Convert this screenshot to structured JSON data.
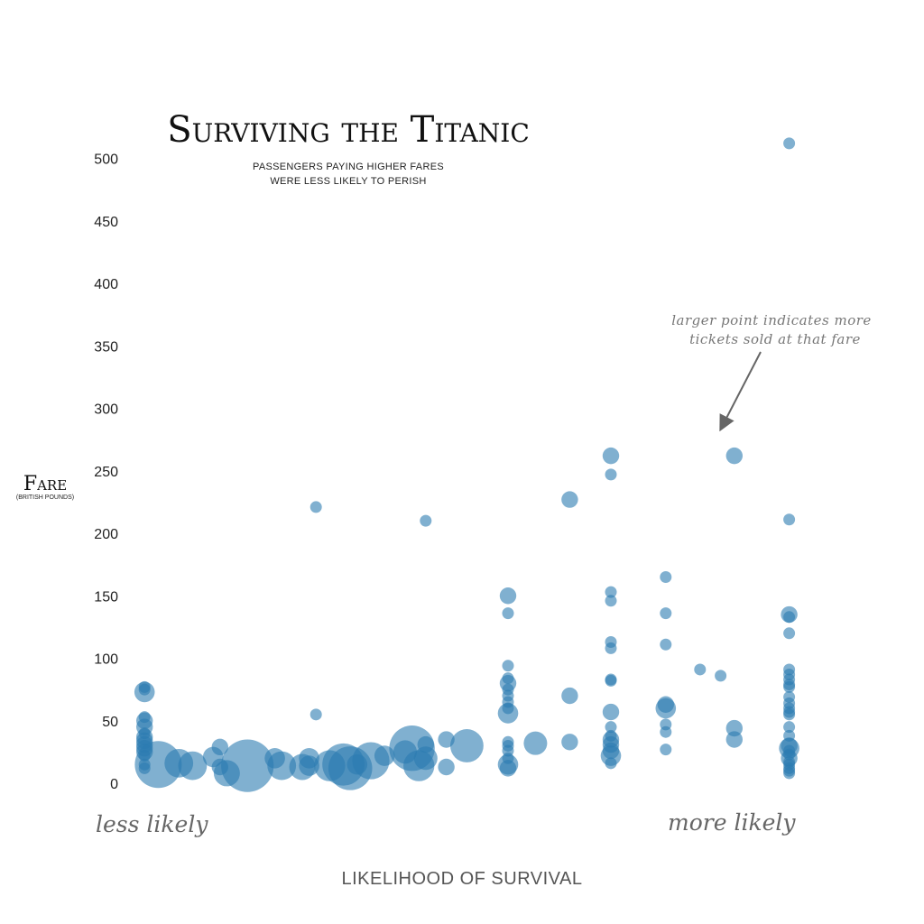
{
  "chart_data": {
    "type": "scatter",
    "title": "Surviving the Titanic",
    "subtitle_lines": [
      "PASSENGERS PAYING HIGHER FARES",
      "WERE LESS LIKELY TO PERISH"
    ],
    "ylabel": "Fare",
    "ylabel_sub": "(BRITISH POUNDS)",
    "xlabel": "LIKELIHOOD OF SURVIVAL",
    "x_low_label": "less likely",
    "x_high_label": "more likely",
    "annotation_lines": [
      "larger point indicates more",
      "tickets sold at that fare"
    ],
    "y_ticks": [
      0,
      50,
      100,
      150,
      200,
      250,
      300,
      350,
      400,
      450,
      500
    ],
    "y_range": [
      0,
      510
    ],
    "x_range": [
      0,
      1
    ],
    "grid": false,
    "legend": "none",
    "color": "#2b7bb0",
    "points": [
      {
        "x": 0.02,
        "y": 77,
        "size": 1
      },
      {
        "x": 0.02,
        "y": 75,
        "size": 1
      },
      {
        "x": 0.02,
        "y": 73,
        "size": 3
      },
      {
        "x": 0.02,
        "y": 53,
        "size": 1
      },
      {
        "x": 0.02,
        "y": 50,
        "size": 2
      },
      {
        "x": 0.02,
        "y": 45,
        "size": 2
      },
      {
        "x": 0.02,
        "y": 40,
        "size": 1
      },
      {
        "x": 0.02,
        "y": 37,
        "size": 2
      },
      {
        "x": 0.02,
        "y": 34,
        "size": 2
      },
      {
        "x": 0.02,
        "y": 31,
        "size": 2
      },
      {
        "x": 0.02,
        "y": 28,
        "size": 2
      },
      {
        "x": 0.02,
        "y": 25,
        "size": 2
      },
      {
        "x": 0.02,
        "y": 22,
        "size": 1
      },
      {
        "x": 0.02,
        "y": 15,
        "size": 1
      },
      {
        "x": 0.02,
        "y": 12,
        "size": 1
      },
      {
        "x": 0.04,
        "y": 15,
        "size": 16
      },
      {
        "x": 0.07,
        "y": 16,
        "size": 6
      },
      {
        "x": 0.09,
        "y": 14,
        "size": 6
      },
      {
        "x": 0.12,
        "y": 21,
        "size": 3
      },
      {
        "x": 0.13,
        "y": 29,
        "size": 2
      },
      {
        "x": 0.13,
        "y": 13,
        "size": 2
      },
      {
        "x": 0.14,
        "y": 8,
        "size": 5
      },
      {
        "x": 0.17,
        "y": 14,
        "size": 20
      },
      {
        "x": 0.21,
        "y": 20,
        "size": 3
      },
      {
        "x": 0.22,
        "y": 14,
        "size": 6
      },
      {
        "x": 0.25,
        "y": 13,
        "size": 5
      },
      {
        "x": 0.26,
        "y": 14,
        "size": 3
      },
      {
        "x": 0.26,
        "y": 20,
        "size": 3
      },
      {
        "x": 0.27,
        "y": 55,
        "size": 1
      },
      {
        "x": 0.27,
        "y": 221,
        "size": 1
      },
      {
        "x": 0.29,
        "y": 14,
        "size": 7
      },
      {
        "x": 0.31,
        "y": 15,
        "size": 13
      },
      {
        "x": 0.32,
        "y": 12,
        "size": 14
      },
      {
        "x": 0.33,
        "y": 15,
        "size": 3
      },
      {
        "x": 0.35,
        "y": 18,
        "size": 10
      },
      {
        "x": 0.37,
        "y": 22,
        "size": 3
      },
      {
        "x": 0.4,
        "y": 25,
        "size": 4
      },
      {
        "x": 0.41,
        "y": 28,
        "size": 15
      },
      {
        "x": 0.42,
        "y": 14,
        "size": 7
      },
      {
        "x": 0.43,
        "y": 20,
        "size": 4
      },
      {
        "x": 0.43,
        "y": 31,
        "size": 2
      },
      {
        "x": 0.43,
        "y": 210,
        "size": 1
      },
      {
        "x": 0.46,
        "y": 13,
        "size": 2
      },
      {
        "x": 0.46,
        "y": 35,
        "size": 2
      },
      {
        "x": 0.49,
        "y": 30,
        "size": 8
      },
      {
        "x": 0.55,
        "y": 150,
        "size": 2
      },
      {
        "x": 0.55,
        "y": 136,
        "size": 1
      },
      {
        "x": 0.55,
        "y": 94,
        "size": 1
      },
      {
        "x": 0.55,
        "y": 84,
        "size": 1
      },
      {
        "x": 0.55,
        "y": 80,
        "size": 2
      },
      {
        "x": 0.55,
        "y": 75,
        "size": 1
      },
      {
        "x": 0.55,
        "y": 70,
        "size": 1
      },
      {
        "x": 0.55,
        "y": 65,
        "size": 1
      },
      {
        "x": 0.55,
        "y": 60,
        "size": 1
      },
      {
        "x": 0.55,
        "y": 56,
        "size": 3
      },
      {
        "x": 0.55,
        "y": 33,
        "size": 1
      },
      {
        "x": 0.55,
        "y": 30,
        "size": 1
      },
      {
        "x": 0.55,
        "y": 26,
        "size": 1
      },
      {
        "x": 0.55,
        "y": 20,
        "size": 1
      },
      {
        "x": 0.55,
        "y": 15,
        "size": 3
      },
      {
        "x": 0.55,
        "y": 12,
        "size": 2
      },
      {
        "x": 0.59,
        "y": 32,
        "size": 4
      },
      {
        "x": 0.64,
        "y": 227,
        "size": 2
      },
      {
        "x": 0.64,
        "y": 70,
        "size": 2
      },
      {
        "x": 0.64,
        "y": 33,
        "size": 2
      },
      {
        "x": 0.7,
        "y": 262,
        "size": 2
      },
      {
        "x": 0.7,
        "y": 247,
        "size": 1
      },
      {
        "x": 0.7,
        "y": 153,
        "size": 1
      },
      {
        "x": 0.7,
        "y": 146,
        "size": 1
      },
      {
        "x": 0.7,
        "y": 113,
        "size": 1
      },
      {
        "x": 0.7,
        "y": 108,
        "size": 1
      },
      {
        "x": 0.7,
        "y": 83,
        "size": 1
      },
      {
        "x": 0.7,
        "y": 82,
        "size": 1
      },
      {
        "x": 0.7,
        "y": 57,
        "size": 2
      },
      {
        "x": 0.7,
        "y": 45,
        "size": 1
      },
      {
        "x": 0.7,
        "y": 38,
        "size": 1
      },
      {
        "x": 0.7,
        "y": 35,
        "size": 2
      },
      {
        "x": 0.7,
        "y": 31,
        "size": 2
      },
      {
        "x": 0.7,
        "y": 26,
        "size": 2
      },
      {
        "x": 0.7,
        "y": 22,
        "size": 3
      },
      {
        "x": 0.7,
        "y": 16,
        "size": 1
      },
      {
        "x": 0.78,
        "y": 165,
        "size": 1
      },
      {
        "x": 0.78,
        "y": 136,
        "size": 1
      },
      {
        "x": 0.78,
        "y": 111,
        "size": 1
      },
      {
        "x": 0.78,
        "y": 63,
        "size": 2
      },
      {
        "x": 0.78,
        "y": 60,
        "size": 3
      },
      {
        "x": 0.78,
        "y": 47,
        "size": 1
      },
      {
        "x": 0.78,
        "y": 41,
        "size": 1
      },
      {
        "x": 0.78,
        "y": 27,
        "size": 1
      },
      {
        "x": 0.83,
        "y": 91,
        "size": 1
      },
      {
        "x": 0.86,
        "y": 86,
        "size": 1
      },
      {
        "x": 0.88,
        "y": 262,
        "size": 2
      },
      {
        "x": 0.88,
        "y": 44,
        "size": 2
      },
      {
        "x": 0.88,
        "y": 35,
        "size": 2
      },
      {
        "x": 0.96,
        "y": 512,
        "size": 1
      },
      {
        "x": 0.96,
        "y": 211,
        "size": 1
      },
      {
        "x": 0.96,
        "y": 135,
        "size": 2
      },
      {
        "x": 0.96,
        "y": 133,
        "size": 1
      },
      {
        "x": 0.96,
        "y": 120,
        "size": 1
      },
      {
        "x": 0.96,
        "y": 91,
        "size": 1
      },
      {
        "x": 0.96,
        "y": 87,
        "size": 1
      },
      {
        "x": 0.96,
        "y": 83,
        "size": 1
      },
      {
        "x": 0.96,
        "y": 79,
        "size": 1
      },
      {
        "x": 0.96,
        "y": 77,
        "size": 1
      },
      {
        "x": 0.96,
        "y": 69,
        "size": 1
      },
      {
        "x": 0.96,
        "y": 64,
        "size": 1
      },
      {
        "x": 0.96,
        "y": 60,
        "size": 1
      },
      {
        "x": 0.96,
        "y": 57,
        "size": 1
      },
      {
        "x": 0.96,
        "y": 55,
        "size": 1
      },
      {
        "x": 0.96,
        "y": 45,
        "size": 1
      },
      {
        "x": 0.96,
        "y": 38,
        "size": 1
      },
      {
        "x": 0.96,
        "y": 30,
        "size": 2
      },
      {
        "x": 0.96,
        "y": 28,
        "size": 3
      },
      {
        "x": 0.96,
        "y": 26,
        "size": 1
      },
      {
        "x": 0.96,
        "y": 23,
        "size": 1
      },
      {
        "x": 0.96,
        "y": 20,
        "size": 2
      },
      {
        "x": 0.96,
        "y": 17,
        "size": 1
      },
      {
        "x": 0.96,
        "y": 15,
        "size": 1
      },
      {
        "x": 0.96,
        "y": 12,
        "size": 1
      },
      {
        "x": 0.96,
        "y": 10,
        "size": 1
      },
      {
        "x": 0.96,
        "y": 8,
        "size": 1
      }
    ]
  }
}
